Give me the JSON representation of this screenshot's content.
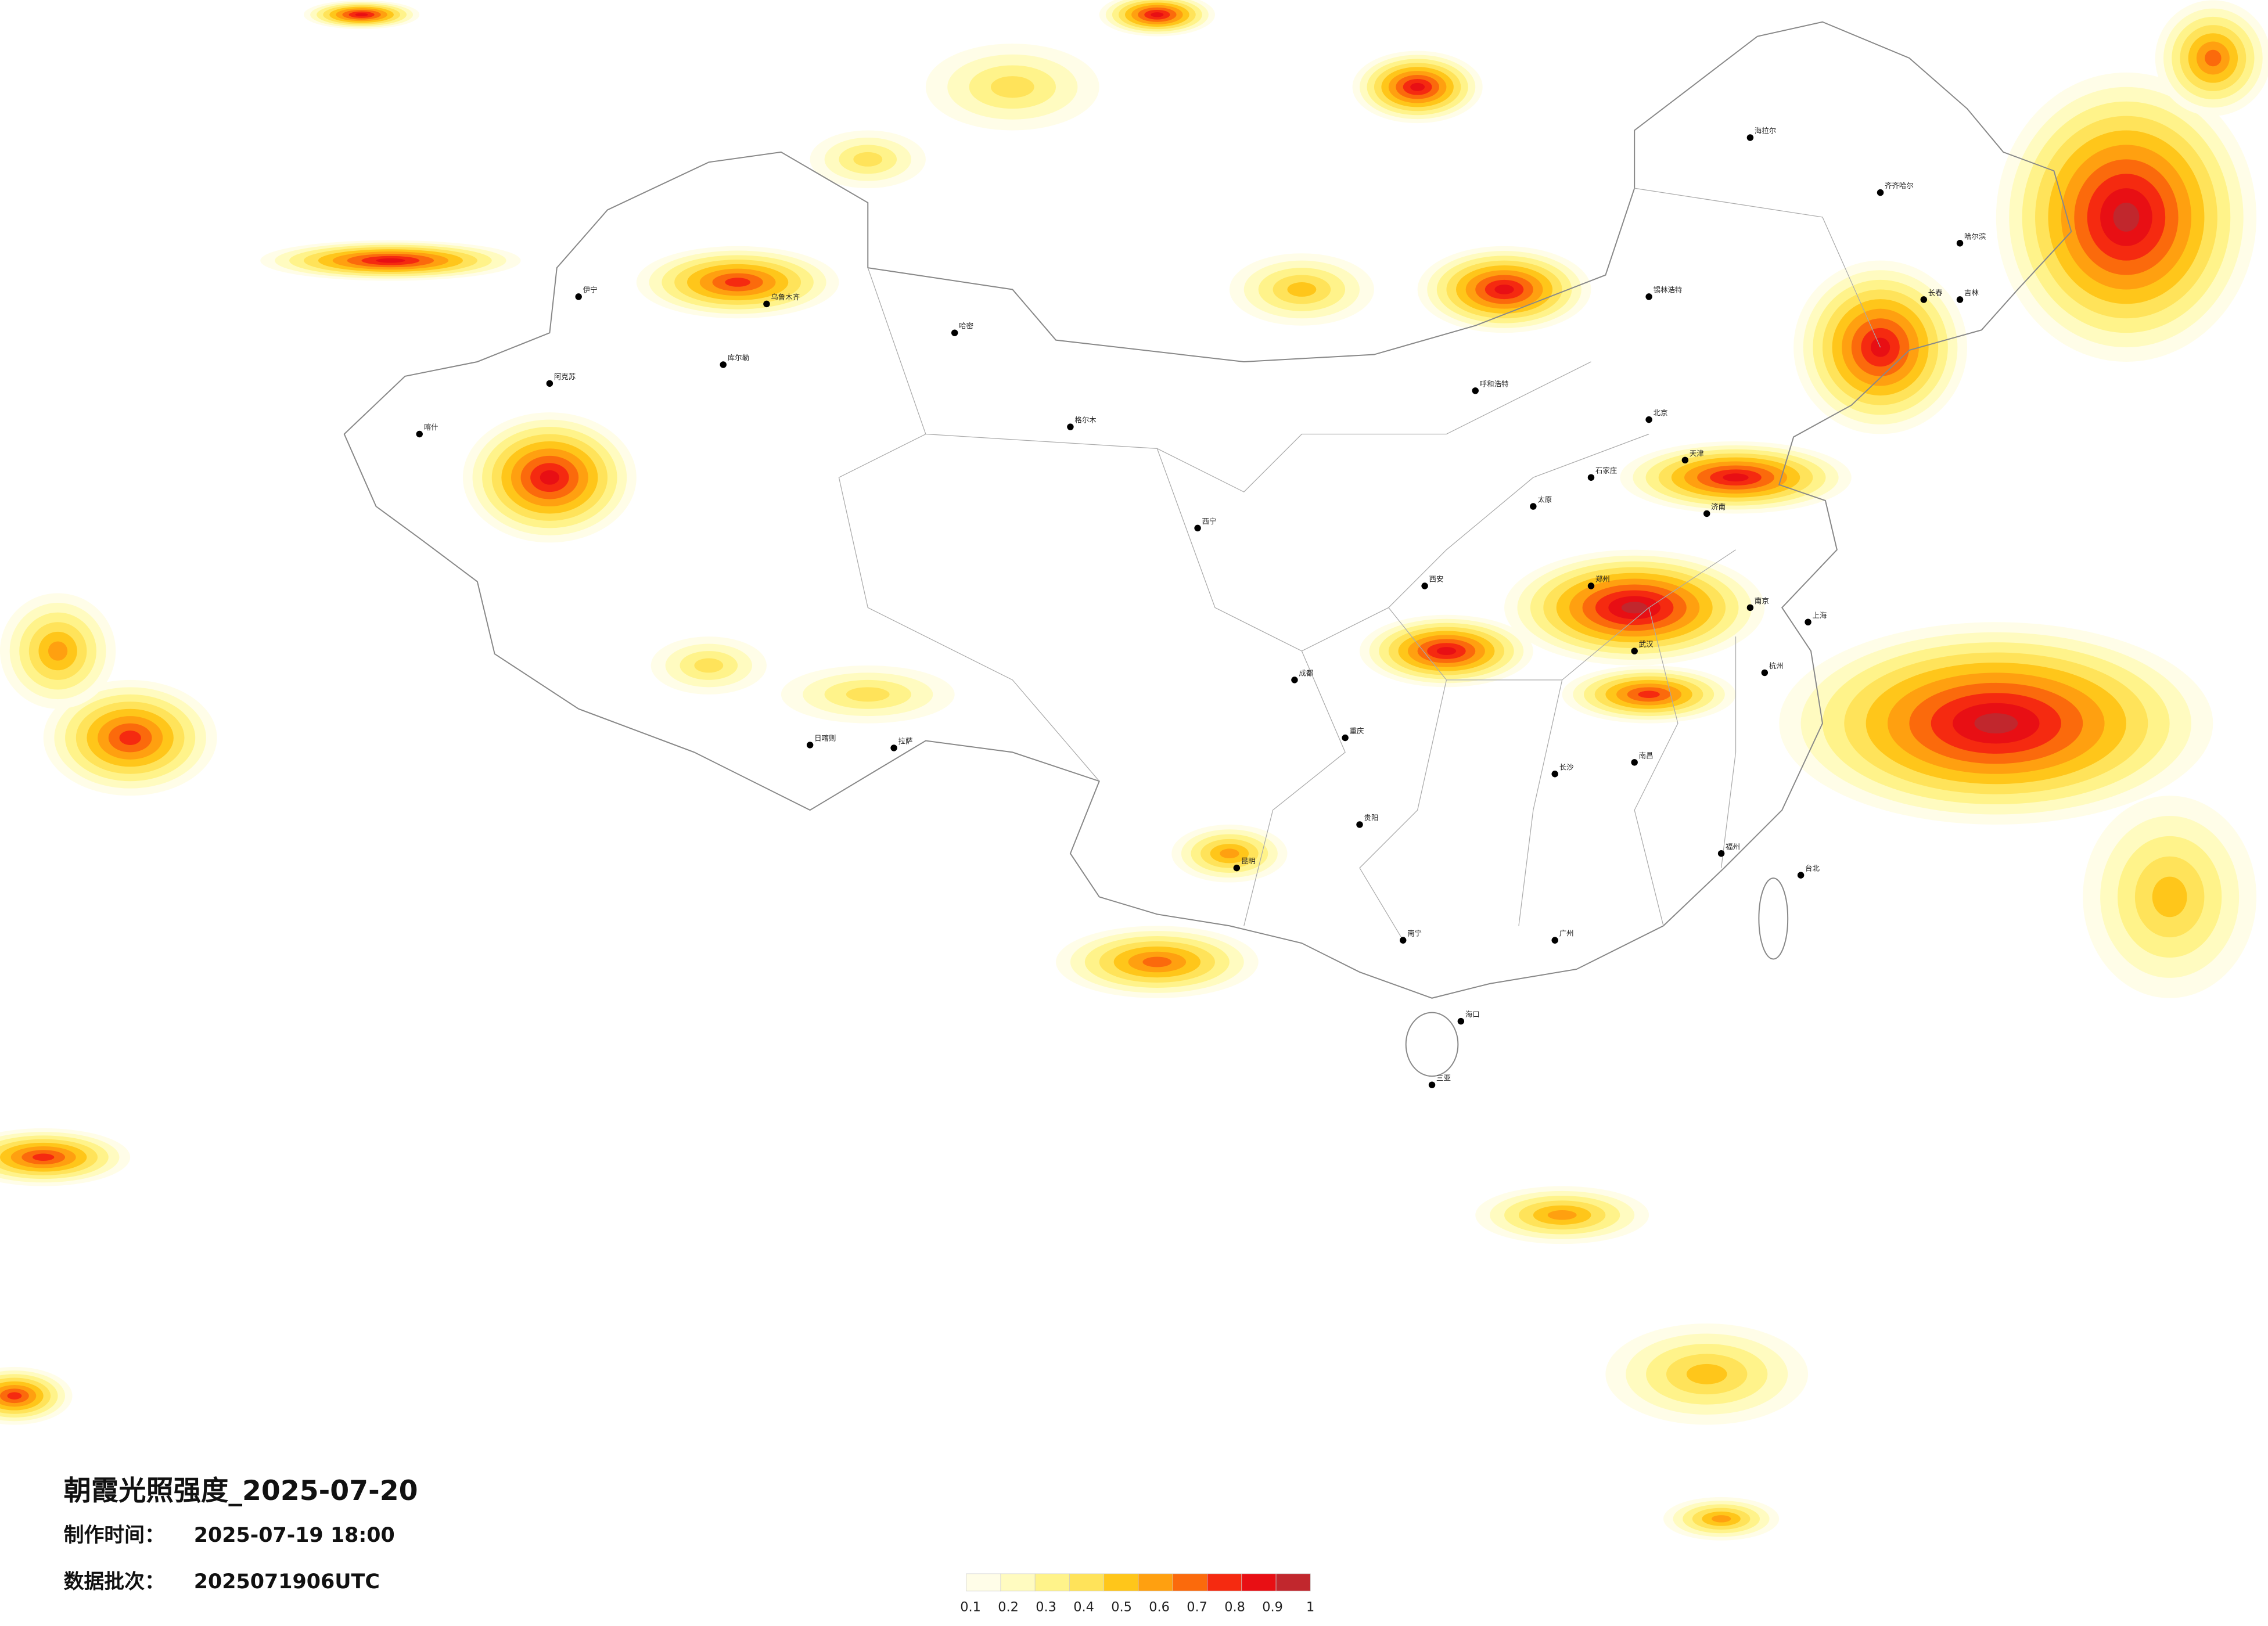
{
  "header": {
    "title": "朝霞光照强度_2025-07-20",
    "made_label": "制作时间：",
    "made_value": "2025-07-19 18:00",
    "batch_label": "数据批次：",
    "batch_value": "2025071906UTC"
  },
  "colorbar": {
    "ticks": [
      0.1,
      0.2,
      0.3,
      0.4,
      0.5,
      0.6,
      0.7,
      0.8,
      0.9,
      1
    ],
    "colors": [
      "#fffde8",
      "#fffbc0",
      "#fff38a",
      "#ffe35a",
      "#ffc61a",
      "#ffa010",
      "#fb6a0c",
      "#f52a10",
      "#e80f14",
      "#c1272d"
    ]
  },
  "cities": [
    "海拉尔",
    "齐齐哈尔",
    "哈尔滨",
    "长春",
    "吉林",
    "锡林浩特",
    "呼和浩特",
    "北京",
    "天津",
    "石家庄",
    "太原",
    "济南",
    "郑州",
    "西安",
    "成都",
    "重庆",
    "武汉",
    "南京",
    "上海",
    "杭州",
    "长沙",
    "南昌",
    "福州",
    "广州",
    "南宁",
    "贵阳",
    "昆明",
    "拉萨",
    "日喀则",
    "乌鲁木齐",
    "喀什",
    "西宁",
    "台北",
    "海口",
    "三亚",
    "哈密",
    "库尔勒",
    "阿克苏",
    "伊宁",
    "格尔木"
  ]
}
